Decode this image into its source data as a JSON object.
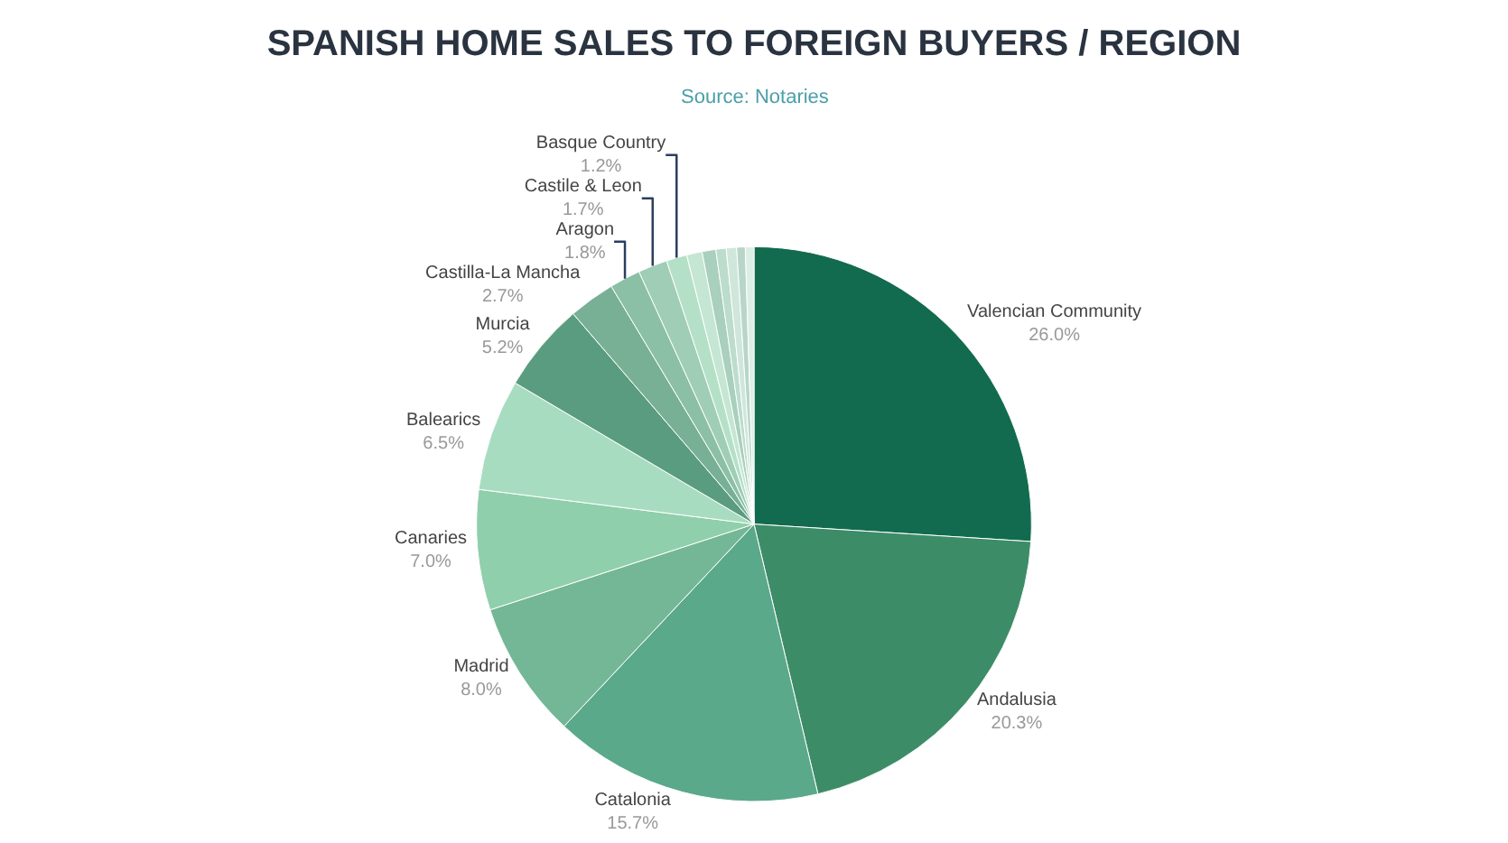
{
  "chart_data": {
    "type": "pie",
    "title": "SPANISH HOME SALES TO FOREIGN BUYERS / REGION",
    "subtitle": "Source: Notaries",
    "categories": [
      "Valencian Community",
      "Andalusia",
      "Catalonia",
      "Madrid",
      "Canaries",
      "Balearics",
      "Murcia",
      "Castilla-La Mancha",
      "Aragon",
      "Castile & Leon",
      "Basque Country",
      null,
      null,
      null,
      null,
      null,
      null
    ],
    "values": [
      26.0,
      20.3,
      15.7,
      8.0,
      7.0,
      6.5,
      5.2,
      2.7,
      1.8,
      1.7,
      1.2,
      0.9,
      0.8,
      0.6,
      0.6,
      0.5,
      0.5
    ],
    "colors": [
      "#136b4f",
      "#3d8c68",
      "#5aa98a",
      "#74b796",
      "#8fcfab",
      "#a8dcc0",
      "#5a9c80",
      "#78b096",
      "#8cc0a6",
      "#9fcdb6",
      "#b5e0c8",
      "#c4e6d3",
      "#a9cfbd",
      "#bcdccc",
      "#cfe7da",
      "#b8d6c8",
      "#dcefe4"
    ],
    "value_labels": [
      "26.0%",
      "20.3%",
      "15.7%",
      "8.0%",
      "7.0%",
      "6.5%",
      "5.2%",
      "2.7%",
      "1.8%",
      "1.7%",
      "1.2%",
      null,
      null,
      null,
      null,
      null,
      null
    ],
    "legend": false
  }
}
